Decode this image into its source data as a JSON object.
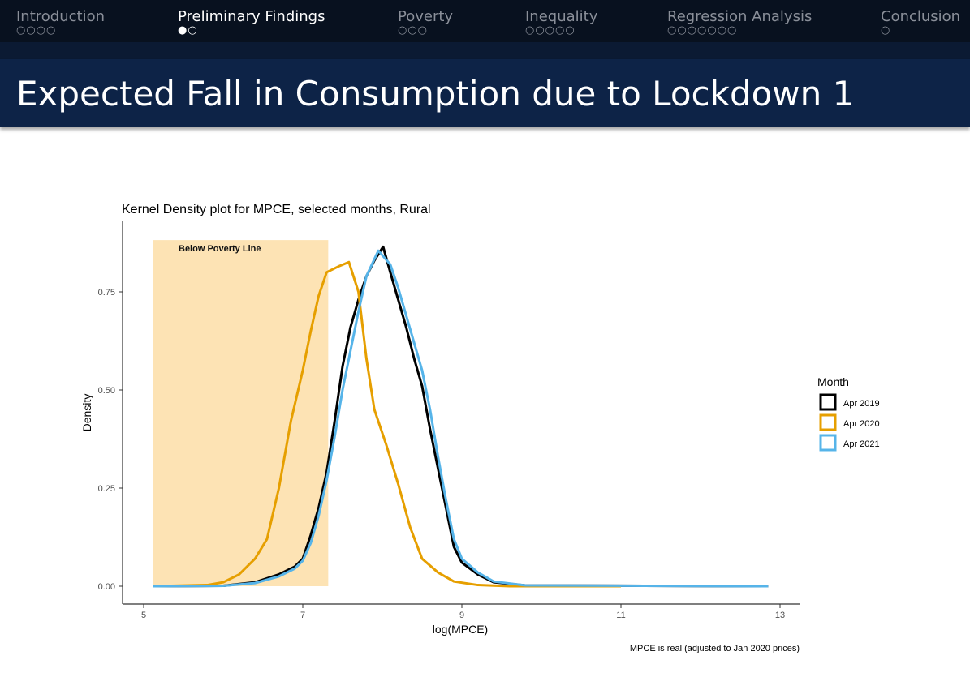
{
  "nav": {
    "sections": [
      {
        "label": "Introduction",
        "dots": "○○○○",
        "active": false
      },
      {
        "label": "Preliminary Findings",
        "dots": "●○",
        "active": true
      },
      {
        "label": "Poverty",
        "dots": "○○○",
        "active": false
      },
      {
        "label": "Inequality",
        "dots": "○○○○○",
        "active": false
      },
      {
        "label": "Regression Analysis",
        "dots": "○○○○○○○",
        "active": false
      },
      {
        "label": "Conclusion",
        "dots": "○",
        "active": false
      }
    ]
  },
  "slide": {
    "title": "Expected Fall in Consumption due to Lockdown 1"
  },
  "chart_data": {
    "type": "line",
    "title": "Kernel Density plot for MPCE, selected months, Rural",
    "xlabel": "log(MPCE)",
    "ylabel": "Density",
    "caption": "MPCE is real (adjusted to Jan 2020 prices)",
    "xlim": [
      4.9,
      13.2
    ],
    "ylim": [
      -0.045,
      0.93
    ],
    "xticks": [
      5,
      7,
      9,
      11,
      13
    ],
    "xtick_labels": [
      "5",
      "7",
      "9",
      "11",
      "13"
    ],
    "yticks": [
      0,
      0.25,
      0.5,
      0.75
    ],
    "ytick_labels": [
      "0.00",
      "0.25",
      "0.50",
      "0.75"
    ],
    "grid": false,
    "annotation": {
      "label": "Below Poverty Line",
      "x_range": [
        5.12,
        7.32
      ],
      "y_top": 0.882,
      "color": "#fde3b4"
    },
    "legend": {
      "title": "Month",
      "placement": "right"
    },
    "series": [
      {
        "name": "Apr 2019",
        "color": "#000000",
        "points": [
          [
            5.12,
            0
          ],
          [
            6.0,
            0.001
          ],
          [
            6.4,
            0.01
          ],
          [
            6.7,
            0.03
          ],
          [
            6.9,
            0.05
          ],
          [
            7.0,
            0.07
          ],
          [
            7.1,
            0.13
          ],
          [
            7.2,
            0.2
          ],
          [
            7.3,
            0.29
          ],
          [
            7.4,
            0.42
          ],
          [
            7.5,
            0.56
          ],
          [
            7.6,
            0.66
          ],
          [
            7.7,
            0.73
          ],
          [
            7.8,
            0.79
          ],
          [
            7.9,
            0.83
          ],
          [
            8.01,
            0.865
          ],
          [
            8.1,
            0.8
          ],
          [
            8.2,
            0.73
          ],
          [
            8.3,
            0.66
          ],
          [
            8.4,
            0.58
          ],
          [
            8.5,
            0.51
          ],
          [
            8.6,
            0.4
          ],
          [
            8.7,
            0.3
          ],
          [
            8.8,
            0.2
          ],
          [
            8.9,
            0.1
          ],
          [
            9.0,
            0.06
          ],
          [
            9.2,
            0.03
          ],
          [
            9.4,
            0.01
          ],
          [
            9.8,
            0.002
          ],
          [
            12.85,
            0
          ]
        ]
      },
      {
        "name": "Apr 2020",
        "color": "#e69f00",
        "points": [
          [
            5.12,
            0
          ],
          [
            5.8,
            0.003
          ],
          [
            6.0,
            0.01
          ],
          [
            6.2,
            0.03
          ],
          [
            6.4,
            0.07
          ],
          [
            6.55,
            0.12
          ],
          [
            6.7,
            0.25
          ],
          [
            6.85,
            0.42
          ],
          [
            7.0,
            0.55
          ],
          [
            7.1,
            0.65
          ],
          [
            7.2,
            0.74
          ],
          [
            7.3,
            0.8
          ],
          [
            7.45,
            0.815
          ],
          [
            7.58,
            0.826
          ],
          [
            7.7,
            0.75
          ],
          [
            7.8,
            0.58
          ],
          [
            7.9,
            0.45
          ],
          [
            8.05,
            0.36
          ],
          [
            8.2,
            0.26
          ],
          [
            8.35,
            0.15
          ],
          [
            8.5,
            0.07
          ],
          [
            8.7,
            0.035
          ],
          [
            8.9,
            0.012
          ],
          [
            9.2,
            0.003
          ],
          [
            9.6,
            0
          ],
          [
            11,
            0
          ]
        ]
      },
      {
        "name": "Apr 2021",
        "color": "#56b4e9",
        "points": [
          [
            5.12,
            0
          ],
          [
            6.0,
            0.001
          ],
          [
            6.4,
            0.008
          ],
          [
            6.7,
            0.025
          ],
          [
            6.9,
            0.045
          ],
          [
            7.0,
            0.065
          ],
          [
            7.1,
            0.11
          ],
          [
            7.2,
            0.18
          ],
          [
            7.3,
            0.27
          ],
          [
            7.4,
            0.38
          ],
          [
            7.5,
            0.5
          ],
          [
            7.6,
            0.6
          ],
          [
            7.7,
            0.7
          ],
          [
            7.8,
            0.79
          ],
          [
            7.95,
            0.855
          ],
          [
            8.1,
            0.82
          ],
          [
            8.2,
            0.76
          ],
          [
            8.3,
            0.69
          ],
          [
            8.4,
            0.62
          ],
          [
            8.5,
            0.55
          ],
          [
            8.6,
            0.45
          ],
          [
            8.7,
            0.33
          ],
          [
            8.8,
            0.22
          ],
          [
            8.9,
            0.12
          ],
          [
            9.0,
            0.07
          ],
          [
            9.2,
            0.035
          ],
          [
            9.4,
            0.012
          ],
          [
            9.8,
            0.002
          ],
          [
            12.85,
            0
          ]
        ]
      }
    ]
  }
}
